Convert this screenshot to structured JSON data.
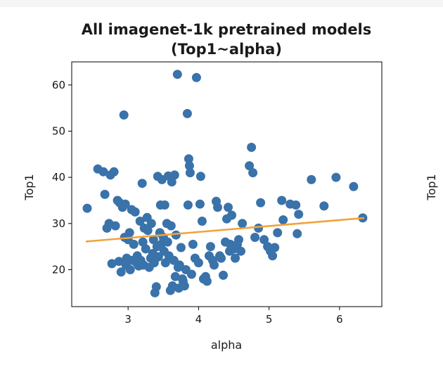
{
  "chart_data": {
    "type": "scatter",
    "title": "All imagenet-1k pretrained models",
    "subtitle": "(Top1~alpha)",
    "xlabel": "alpha",
    "ylabel": "Top1",
    "right_panel_ylabel": "Top1",
    "xlim": [
      2.2,
      6.6
    ],
    "ylim": [
      12,
      65
    ],
    "xticks": [
      "3",
      "4",
      "5",
      "6"
    ],
    "yticks": [
      "20",
      "30",
      "40",
      "50",
      "60"
    ],
    "grid": false,
    "colors": {
      "points": "#3a72aa",
      "fit_line": "#f0a33c",
      "axes": "#000000"
    },
    "fit_line": {
      "x": [
        2.4,
        6.35
      ],
      "y": [
        26.1,
        31.2
      ]
    },
    "points": [
      [
        2.42,
        33.3
      ],
      [
        2.57,
        41.8
      ],
      [
        2.65,
        41.2
      ],
      [
        2.67,
        36.3
      ],
      [
        2.7,
        29.0
      ],
      [
        2.73,
        30.0
      ],
      [
        2.75,
        40.5
      ],
      [
        2.77,
        21.3
      ],
      [
        2.8,
        41.2
      ],
      [
        2.82,
        29.5
      ],
      [
        2.85,
        35.0
      ],
      [
        2.87,
        21.8
      ],
      [
        2.88,
        34.5
      ],
      [
        2.9,
        19.5
      ],
      [
        2.92,
        33.5
      ],
      [
        2.94,
        53.5
      ],
      [
        2.95,
        27.0
      ],
      [
        2.96,
        34.2
      ],
      [
        2.97,
        21.0
      ],
      [
        2.98,
        22.5
      ],
      [
        3.0,
        26.5
      ],
      [
        3.02,
        28.0
      ],
      [
        3.03,
        20.0
      ],
      [
        3.05,
        33.0
      ],
      [
        3.06,
        22.0
      ],
      [
        3.08,
        25.5
      ],
      [
        3.1,
        32.5
      ],
      [
        3.12,
        21.5
      ],
      [
        3.13,
        23.0
      ],
      [
        3.15,
        20.8
      ],
      [
        3.17,
        30.5
      ],
      [
        3.18,
        22.0
      ],
      [
        3.2,
        38.7
      ],
      [
        3.21,
        26.0
      ],
      [
        3.22,
        21.0
      ],
      [
        3.23,
        29.0
      ],
      [
        3.25,
        24.5
      ],
      [
        3.27,
        31.3
      ],
      [
        3.28,
        28.5
      ],
      [
        3.3,
        20.5
      ],
      [
        3.32,
        22.5
      ],
      [
        3.33,
        30.0
      ],
      [
        3.35,
        23.5
      ],
      [
        3.36,
        26.5
      ],
      [
        3.37,
        21.5
      ],
      [
        3.38,
        15.0
      ],
      [
        3.4,
        16.3
      ],
      [
        3.41,
        25.0
      ],
      [
        3.42,
        40.2
      ],
      [
        3.43,
        22.8
      ],
      [
        3.45,
        28.0
      ],
      [
        3.46,
        34.0
      ],
      [
        3.47,
        25.5
      ],
      [
        3.48,
        39.5
      ],
      [
        3.5,
        27.0
      ],
      [
        3.51,
        24.0
      ],
      [
        3.52,
        34.0
      ],
      [
        3.53,
        21.5
      ],
      [
        3.55,
        30.0
      ],
      [
        3.56,
        26.0
      ],
      [
        3.57,
        40.3
      ],
      [
        3.58,
        23.0
      ],
      [
        3.6,
        15.5
      ],
      [
        3.61,
        29.5
      ],
      [
        3.62,
        39.0
      ],
      [
        3.63,
        16.5
      ],
      [
        3.65,
        22.0
      ],
      [
        3.66,
        40.5
      ],
      [
        3.67,
        18.5
      ],
      [
        3.68,
        27.5
      ],
      [
        3.7,
        62.3
      ],
      [
        3.71,
        20.5
      ],
      [
        3.72,
        16.0
      ],
      [
        3.73,
        21.0
      ],
      [
        3.75,
        24.8
      ],
      [
        3.77,
        18.0
      ],
      [
        3.78,
        17.5
      ],
      [
        3.8,
        16.5
      ],
      [
        3.82,
        20.0
      ],
      [
        3.84,
        53.8
      ],
      [
        3.85,
        34.0
      ],
      [
        3.86,
        44.0
      ],
      [
        3.87,
        42.5
      ],
      [
        3.88,
        41.0
      ],
      [
        3.9,
        19.0
      ],
      [
        3.92,
        25.5
      ],
      [
        3.95,
        22.5
      ],
      [
        3.97,
        61.6
      ],
      [
        4.0,
        21.5
      ],
      [
        4.02,
        34.2
      ],
      [
        4.03,
        40.2
      ],
      [
        4.05,
        30.5
      ],
      [
        4.07,
        18.0
      ],
      [
        4.1,
        18.5
      ],
      [
        4.12,
        17.5
      ],
      [
        4.15,
        23.0
      ],
      [
        4.17,
        25.0
      ],
      [
        4.2,
        22.0
      ],
      [
        4.22,
        21.0
      ],
      [
        4.25,
        34.8
      ],
      [
        4.27,
        33.5
      ],
      [
        4.3,
        23.0
      ],
      [
        4.32,
        22.5
      ],
      [
        4.35,
        18.8
      ],
      [
        4.38,
        26.0
      ],
      [
        4.4,
        31.0
      ],
      [
        4.42,
        33.5
      ],
      [
        4.44,
        24.0
      ],
      [
        4.45,
        25.5
      ],
      [
        4.47,
        31.8
      ],
      [
        4.5,
        24.5
      ],
      [
        4.52,
        22.5
      ],
      [
        4.55,
        25.5
      ],
      [
        4.57,
        26.5
      ],
      [
        4.6,
        24.0
      ],
      [
        4.62,
        30.0
      ],
      [
        4.72,
        42.5
      ],
      [
        4.75,
        46.5
      ],
      [
        4.77,
        41.0
      ],
      [
        4.8,
        27.0
      ],
      [
        4.85,
        29.0
      ],
      [
        4.88,
        34.5
      ],
      [
        4.93,
        26.5
      ],
      [
        4.98,
        25.0
      ],
      [
        5.02,
        24.0
      ],
      [
        5.05,
        23.0
      ],
      [
        5.08,
        24.8
      ],
      [
        5.12,
        28.0
      ],
      [
        5.18,
        35.0
      ],
      [
        5.2,
        30.8
      ],
      [
        5.3,
        34.2
      ],
      [
        5.38,
        34.0
      ],
      [
        5.4,
        27.8
      ],
      [
        5.42,
        32.0
      ],
      [
        5.6,
        39.5
      ],
      [
        5.78,
        33.8
      ],
      [
        5.95,
        40.0
      ],
      [
        6.2,
        38.0
      ],
      [
        6.33,
        31.2
      ]
    ]
  }
}
